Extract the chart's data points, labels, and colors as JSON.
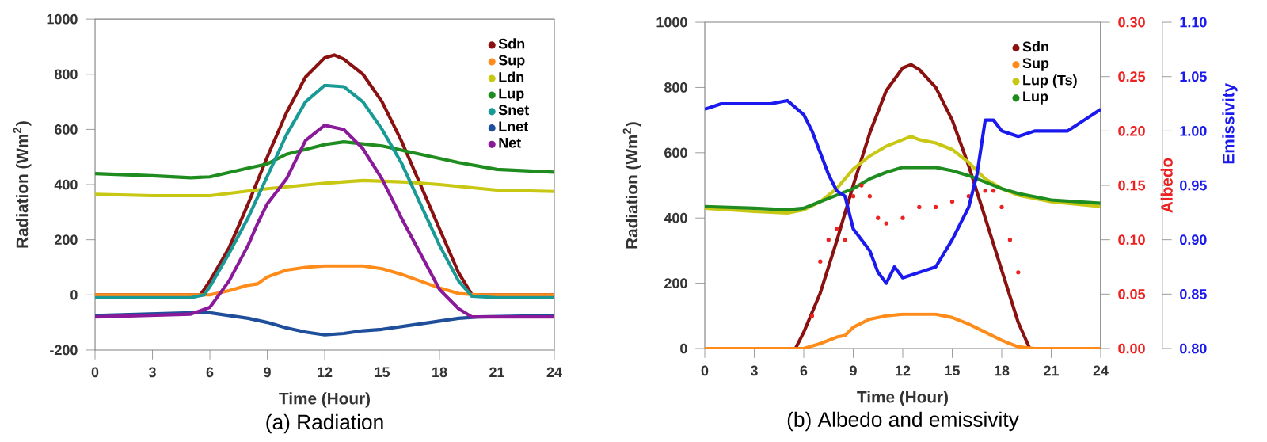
{
  "chart_data": [
    {
      "type": "line",
      "title": "(a) Radiation",
      "xlabel": "Time (Hour)",
      "ylabel": "Radiation (Wm$^{2}$)",
      "xlim": [
        0,
        24
      ],
      "ylim": [
        -200,
        1000
      ],
      "xticks": [
        0,
        3,
        6,
        9,
        12,
        15,
        18,
        21,
        24
      ],
      "yticks": [
        -200,
        0,
        200,
        400,
        600,
        800,
        1000
      ],
      "legend": "top right",
      "series": [
        {
          "name": "Sdn",
          "color": "#8b1010",
          "x": [
            0,
            5.5,
            6,
            7,
            8,
            9,
            10,
            11,
            12,
            12.5,
            13,
            14,
            15,
            16,
            17,
            18,
            19,
            19.7,
            24
          ],
          "values": [
            0,
            0,
            50,
            170,
            330,
            500,
            660,
            790,
            860,
            870,
            855,
            800,
            700,
            560,
            400,
            240,
            80,
            0,
            0
          ]
        },
        {
          "name": "Sup",
          "color": "#ff8c1a",
          "x": [
            0,
            6,
            7,
            8,
            8.5,
            9,
            10,
            11,
            12,
            13,
            14,
            15,
            16,
            17,
            18,
            19,
            20,
            24
          ],
          "values": [
            0,
            0,
            15,
            35,
            40,
            65,
            90,
            100,
            105,
            105,
            105,
            95,
            75,
            50,
            25,
            5,
            0,
            0
          ]
        },
        {
          "name": "Ldn",
          "color": "#c8c814",
          "x": [
            0,
            3,
            6,
            9,
            12,
            14,
            16,
            18,
            21,
            24
          ],
          "values": [
            365,
            360,
            360,
            385,
            405,
            415,
            410,
            400,
            380,
            375
          ]
        },
        {
          "name": "Lup",
          "color": "#1e8c1e",
          "x": [
            0,
            3,
            5,
            6,
            8,
            9,
            10,
            12,
            13,
            15,
            17,
            19,
            21,
            24
          ],
          "values": [
            440,
            432,
            425,
            428,
            460,
            475,
            510,
            545,
            555,
            540,
            510,
            480,
            455,
            445
          ]
        },
        {
          "name": "Snet",
          "color": "#1a9a96",
          "x": [
            0,
            5,
            5.7,
            6,
            7,
            8,
            9,
            10,
            11,
            12,
            13,
            14,
            15,
            16,
            17,
            18,
            19,
            19.7,
            21,
            24
          ],
          "values": [
            -10,
            -10,
            0,
            30,
            150,
            280,
            430,
            580,
            700,
            760,
            755,
            700,
            600,
            480,
            330,
            180,
            50,
            -5,
            -10,
            -10
          ]
        },
        {
          "name": "Lnet",
          "color": "#1f4e9a",
          "x": [
            0,
            5,
            6,
            8,
            9,
            10,
            11,
            12,
            13,
            14,
            15,
            16,
            17,
            18,
            19,
            20,
            24
          ],
          "values": [
            -75,
            -65,
            -65,
            -85,
            -100,
            -120,
            -135,
            -145,
            -140,
            -130,
            -125,
            -115,
            -105,
            -95,
            -85,
            -80,
            -75
          ]
        },
        {
          "name": "Net",
          "color": "#8a1a9a",
          "x": [
            0,
            5,
            6,
            7,
            8,
            8.5,
            9,
            10,
            11,
            12,
            13,
            14,
            15,
            16,
            17,
            18,
            19,
            19.7,
            24
          ],
          "values": [
            -80,
            -70,
            -45,
            50,
            180,
            260,
            330,
            420,
            560,
            615,
            600,
            530,
            420,
            280,
            150,
            20,
            -50,
            -80,
            -80
          ]
        }
      ]
    },
    {
      "type": "line",
      "title": "(b) Albedo and emissivity",
      "xlabel": "Time (Hour)",
      "ylabel": "Radiation (Wm$^{2}$)",
      "y2label": "Albedo",
      "y3label": "Emissivity",
      "xlim": [
        0,
        24
      ],
      "ylim": [
        0,
        1000
      ],
      "y2lim": [
        0,
        0.3
      ],
      "y3lim": [
        0.8,
        1.1
      ],
      "xticks": [
        0,
        3,
        6,
        9,
        12,
        15,
        18,
        21,
        24
      ],
      "yticks": [
        0,
        200,
        400,
        600,
        800,
        1000
      ],
      "y2ticks": [
        {
          "value": 0,
          "label": "0.00"
        },
        {
          "value": 0.05,
          "label": "0.05"
        },
        {
          "value": 0.1,
          "label": "0.10"
        },
        {
          "value": 0.15,
          "label": "0.15"
        },
        {
          "value": 0.2,
          "label": "0.20"
        },
        {
          "value": 0.25,
          "label": "0.25"
        },
        {
          "value": 0.3,
          "label": "0.30"
        }
      ],
      "y3ticks": [
        {
          "value": 0.8,
          "label": "0.80"
        },
        {
          "value": 0.85,
          "label": "0.85"
        },
        {
          "value": 0.9,
          "label": "0.90"
        },
        {
          "value": 0.95,
          "label": "0.95"
        },
        {
          "value": 1.0,
          "label": "1.00"
        },
        {
          "value": 1.05,
          "label": "1.05"
        },
        {
          "value": 1.1,
          "label": "1.10"
        }
      ],
      "legend": "top right",
      "series": [
        {
          "name": "Sdn",
          "color": "#8b1010",
          "x": [
            0,
            5.5,
            6,
            7,
            8,
            9,
            10,
            11,
            12,
            12.5,
            13,
            14,
            15,
            16,
            17,
            18,
            19,
            19.7,
            24
          ],
          "values": [
            0,
            0,
            50,
            170,
            330,
            500,
            660,
            790,
            860,
            870,
            855,
            800,
            700,
            560,
            400,
            240,
            80,
            0,
            0
          ]
        },
        {
          "name": "Sup",
          "color": "#ff8c1a",
          "x": [
            0,
            6,
            7,
            8,
            8.5,
            9,
            10,
            11,
            12,
            13,
            14,
            15,
            16,
            17,
            18,
            19,
            20,
            24
          ],
          "values": [
            0,
            0,
            15,
            35,
            40,
            65,
            90,
            100,
            105,
            105,
            105,
            95,
            75,
            50,
            25,
            5,
            0,
            0
          ]
        },
        {
          "name": "Lup (Ts)",
          "color": "#c8c814",
          "x": [
            0,
            3,
            5,
            6,
            7,
            8,
            9,
            10,
            11,
            12,
            12.5,
            13,
            14,
            15,
            16,
            17,
            18,
            19,
            21,
            24
          ],
          "values": [
            430,
            420,
            415,
            425,
            450,
            490,
            550,
            590,
            620,
            640,
            650,
            640,
            630,
            610,
            570,
            520,
            490,
            470,
            450,
            435
          ]
        },
        {
          "name": "Lup",
          "color": "#1e8c1e",
          "x": [
            0,
            3,
            5,
            6,
            7,
            8,
            9,
            10,
            11,
            12,
            13,
            14,
            15,
            16,
            17,
            18,
            19,
            21,
            24
          ],
          "values": [
            435,
            430,
            425,
            430,
            450,
            470,
            490,
            520,
            540,
            555,
            555,
            555,
            545,
            530,
            510,
            490,
            475,
            455,
            445
          ]
        },
        {
          "type": "scatter",
          "axis": "y2",
          "color": "#ee2020",
          "x": [
            6.5,
            7,
            7.5,
            8,
            8.5,
            9,
            9.5,
            10,
            10.5,
            11,
            12,
            13,
            14,
            15,
            16,
            17,
            17.5,
            18,
            18.5,
            19
          ],
          "values": [
            0.03,
            0.08,
            0.1,
            0.11,
            0.1,
            0.14,
            0.15,
            0.14,
            0.12,
            0.115,
            0.12,
            0.13,
            0.13,
            0.135,
            0.14,
            0.145,
            0.145,
            0.13,
            0.1,
            0.07
          ]
        },
        {
          "axis": "y3",
          "color": "#1a1aee",
          "x": [
            0,
            1,
            2,
            3,
            4,
            5,
            6,
            6.5,
            7,
            7.5,
            8,
            8.5,
            9,
            9.5,
            10,
            10.5,
            11,
            11.5,
            12,
            13,
            14,
            15,
            16,
            16.5,
            17,
            17.5,
            18,
            19,
            20,
            21,
            22,
            23,
            24
          ],
          "values": [
            1.02,
            1.025,
            1.025,
            1.025,
            1.025,
            1.028,
            1.015,
            1.0,
            0.98,
            0.96,
            0.945,
            0.94,
            0.91,
            0.9,
            0.89,
            0.87,
            0.86,
            0.875,
            0.865,
            0.87,
            0.875,
            0.9,
            0.93,
            0.96,
            1.01,
            1.01,
            1.0,
            0.995,
            1.0,
            1.0,
            1.0,
            1.01,
            1.02
          ]
        }
      ]
    }
  ]
}
